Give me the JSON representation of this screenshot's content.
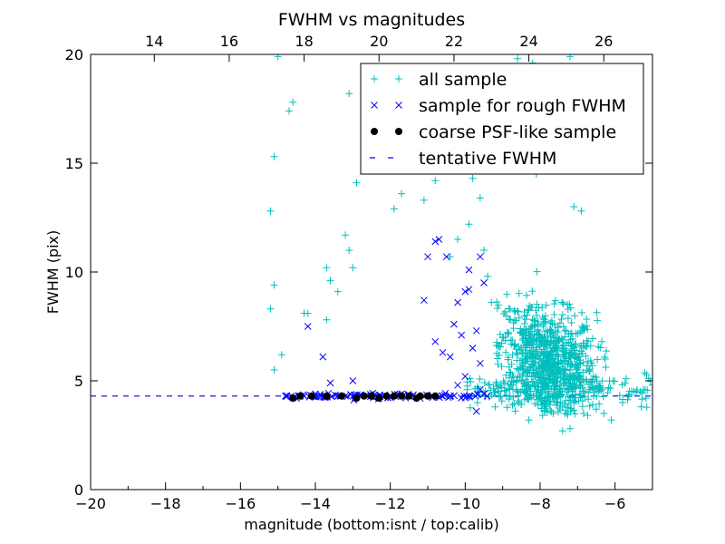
{
  "chart_data": {
    "type": "scatter",
    "title": "FWHM vs magnitudes",
    "xlabel": "magnitude (bottom:isnt / top:calib)",
    "ylabel": "FWHM (pix)",
    "xlim": [
      -20,
      -5
    ],
    "ylim": [
      0,
      20
    ],
    "top_xlim": [
      12.3,
      27.3
    ],
    "x_ticks": [
      "−20",
      "−18",
      "−16",
      "−14",
      "−12",
      "−10",
      "−8",
      "−6"
    ],
    "y_ticks": [
      "0",
      "5",
      "10",
      "15",
      "20"
    ],
    "top_ticks": [
      "14",
      "16",
      "18",
      "20",
      "22",
      "24",
      "26"
    ],
    "grid": false,
    "legend_position": "top-right",
    "colors": {
      "all_sample": "#00bfbf",
      "rough": "#0000ff",
      "coarse": "#000000",
      "tentative": "#0000ff"
    },
    "legend": [
      {
        "label": "all sample",
        "marker": "plus"
      },
      {
        "label": "sample for rough FWHM",
        "marker": "x"
      },
      {
        "label": "coarse PSF-like sample",
        "marker": "dot"
      },
      {
        "label": "tentative FWHM",
        "marker": "dash"
      }
    ],
    "series": [
      {
        "name": "all sample",
        "marker": "plus",
        "points": [
          [
            -15.0,
            19.9
          ],
          [
            -14.7,
            17.4
          ],
          [
            -14.6,
            17.8
          ],
          [
            -15.1,
            15.3
          ],
          [
            -15.2,
            12.8
          ],
          [
            -15.1,
            9.4
          ],
          [
            -15.2,
            8.3
          ],
          [
            -14.9,
            6.2
          ],
          [
            -15.1,
            5.5
          ],
          [
            -14.3,
            8.1
          ],
          [
            -14.2,
            8.1
          ],
          [
            -13.7,
            10.2
          ],
          [
            -13.6,
            9.6
          ],
          [
            -13.7,
            7.8
          ],
          [
            -13.4,
            9.1
          ],
          [
            -13.2,
            11.7
          ],
          [
            -13.1,
            18.2
          ],
          [
            -13.0,
            10.2
          ],
          [
            -12.9,
            14.1
          ],
          [
            -13.1,
            11.0
          ],
          [
            -12.7,
            15.0
          ],
          [
            -12.2,
            19.0
          ],
          [
            -11.9,
            12.9
          ],
          [
            -11.7,
            13.6
          ],
          [
            -11.1,
            13.3
          ],
          [
            -10.8,
            14.2
          ],
          [
            -10.7,
            18.8
          ],
          [
            -10.5,
            14.7
          ],
          [
            -10.4,
            10.7
          ],
          [
            -10.2,
            11.5
          ],
          [
            -9.9,
            12.2
          ],
          [
            -9.8,
            14.3
          ],
          [
            -9.6,
            13.4
          ],
          [
            -9.5,
            11.0
          ],
          [
            -9.4,
            9.8
          ],
          [
            -9.3,
            8.6
          ],
          [
            -9.0,
            7.0
          ],
          [
            -8.6,
            19.8
          ],
          [
            -8.2,
            19.6
          ],
          [
            -7.6,
            16.9
          ],
          [
            -7.2,
            19.9
          ],
          [
            -7.6,
            19.0
          ],
          [
            -7.2,
            18.1
          ],
          [
            -6.9,
            12.8
          ],
          [
            -7.1,
            13.0
          ],
          [
            -7.1,
            4.0
          ],
          [
            -6.6,
            3.9
          ],
          [
            -6.5,
            4.6
          ],
          [
            -6.3,
            3.5
          ],
          [
            -6.1,
            3.2
          ],
          [
            -5.8,
            4.0
          ],
          [
            -5.7,
            5.1
          ],
          [
            -5.5,
            4.5
          ],
          [
            -5.3,
            3.8
          ],
          [
            -5.1,
            5.1
          ],
          [
            -5.0,
            4.8
          ],
          [
            -6.9,
            6.6
          ],
          [
            -6.6,
            5.7
          ],
          [
            -6.5,
            3.7
          ],
          [
            -8.3,
            3.2
          ],
          [
            -7.4,
            2.7
          ],
          [
            -7.2,
            2.8
          ],
          [
            -9.2,
            3.8
          ],
          [
            -8.8,
            4.3
          ],
          [
            -8.1,
            14.5
          ]
        ],
        "cloud": {
          "count": 900,
          "x_range": [
            -9.2,
            -6.8
          ],
          "y_range": [
            4.0,
            9.5
          ],
          "peak": [
            -7.8,
            5.5
          ]
        }
      },
      {
        "name": "sample for rough FWHM",
        "marker": "x",
        "points": [
          [
            -14.8,
            4.3
          ],
          [
            -14.5,
            4.2
          ],
          [
            -14.3,
            4.3
          ],
          [
            -14.2,
            7.5
          ],
          [
            -14.0,
            4.4
          ],
          [
            -13.8,
            6.1
          ],
          [
            -13.6,
            4.9
          ],
          [
            -13.4,
            4.3
          ],
          [
            -13.2,
            4.3
          ],
          [
            -13.0,
            5.0
          ],
          [
            -12.8,
            4.3
          ],
          [
            -12.4,
            4.3
          ],
          [
            -12.0,
            4.3
          ],
          [
            -11.7,
            4.4
          ],
          [
            -11.4,
            4.3
          ],
          [
            -11.2,
            4.2
          ],
          [
            -11.1,
            8.7
          ],
          [
            -11.0,
            10.7
          ],
          [
            -10.8,
            11.4
          ],
          [
            -10.7,
            11.5
          ],
          [
            -10.6,
            4.3
          ],
          [
            -10.5,
            10.7
          ],
          [
            -10.4,
            6.1
          ],
          [
            -10.3,
            7.6
          ],
          [
            -10.2,
            8.6
          ],
          [
            -10.1,
            7.1
          ],
          [
            -10.0,
            9.1
          ],
          [
            -9.9,
            9.2
          ],
          [
            -9.9,
            10.1
          ],
          [
            -9.8,
            6.5
          ],
          [
            -9.7,
            7.3
          ],
          [
            -9.6,
            10.7
          ],
          [
            -9.5,
            9.5
          ],
          [
            -9.6,
            5.8
          ],
          [
            -9.7,
            3.6
          ],
          [
            -10.0,
            5.2
          ],
          [
            -10.2,
            4.8
          ],
          [
            -9.6,
            4.6
          ],
          [
            -9.5,
            4.4
          ],
          [
            -10.8,
            6.8
          ],
          [
            -10.6,
            6.3
          ]
        ]
      },
      {
        "name": "coarse PSF-like sample",
        "marker": "dot",
        "points": [
          [
            -14.6,
            4.2
          ],
          [
            -14.4,
            4.3
          ],
          [
            -14.1,
            4.3
          ],
          [
            -13.7,
            4.3
          ],
          [
            -13.3,
            4.3
          ],
          [
            -12.9,
            4.2
          ],
          [
            -12.7,
            4.3
          ],
          [
            -12.5,
            4.3
          ],
          [
            -12.3,
            4.2
          ],
          [
            -12.1,
            4.3
          ],
          [
            -11.9,
            4.3
          ],
          [
            -11.7,
            4.3
          ],
          [
            -11.5,
            4.3
          ],
          [
            -11.3,
            4.2
          ],
          [
            -11.2,
            4.3
          ],
          [
            -11.0,
            4.3
          ],
          [
            -10.8,
            4.3
          ]
        ]
      },
      {
        "name": "tentative FWHM",
        "marker": "dash",
        "y": 4.3
      }
    ]
  }
}
